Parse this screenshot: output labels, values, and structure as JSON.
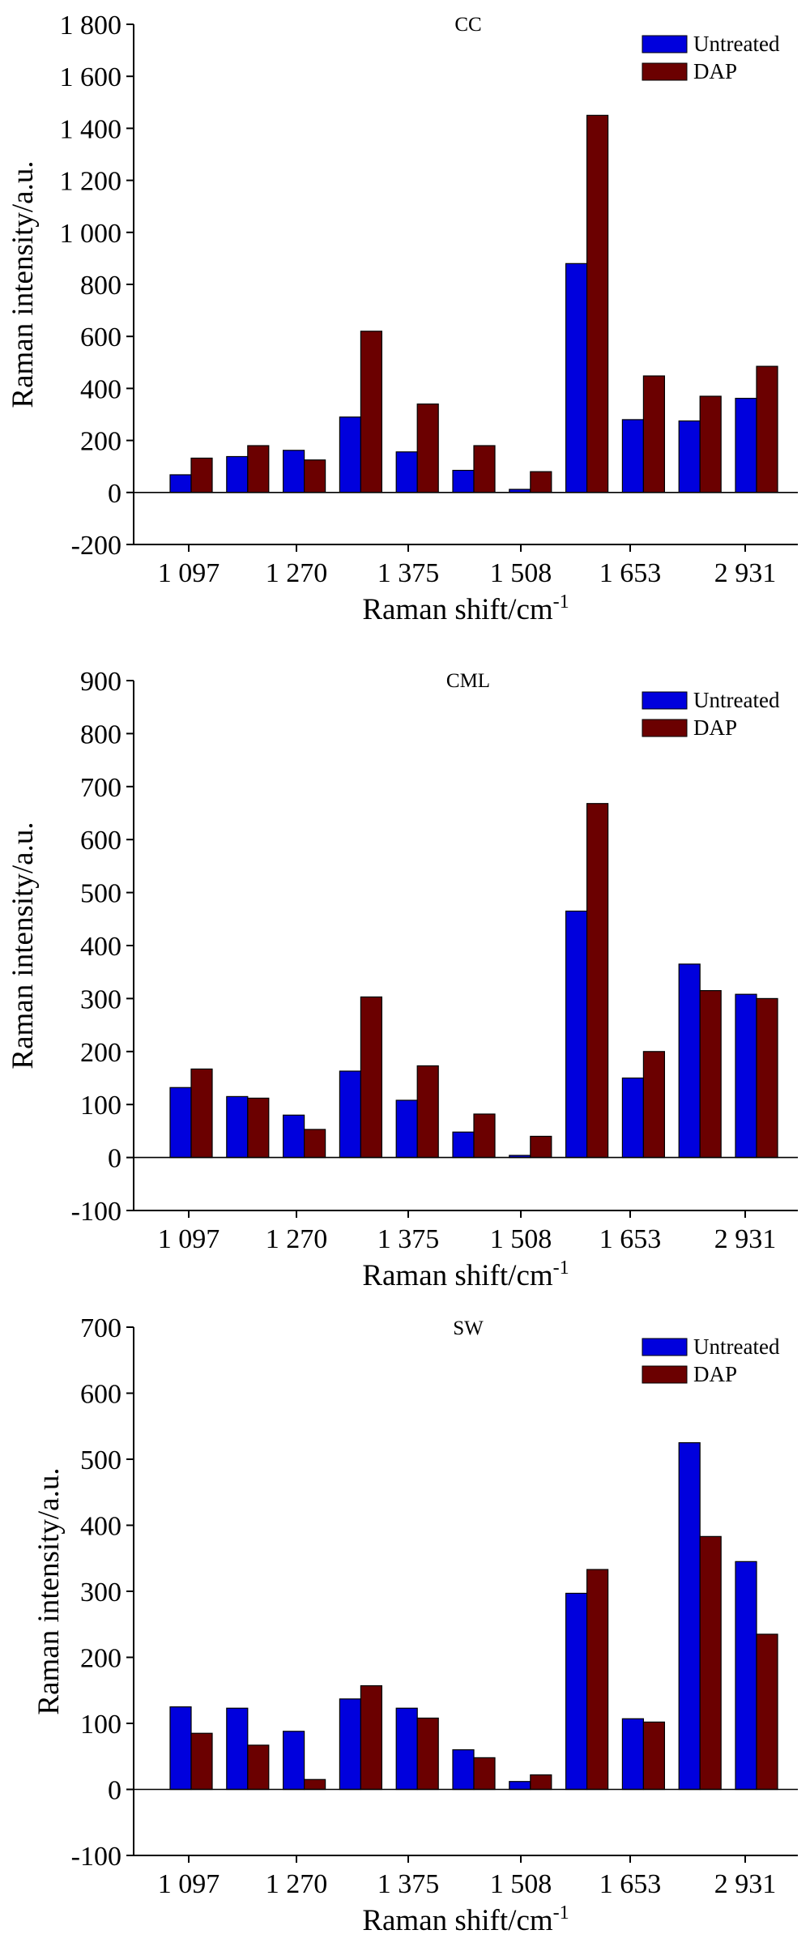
{
  "chart_data": [
    {
      "type": "bar",
      "title": "CC",
      "xlabel": "Raman shift/cm",
      "xlabel_sup": "-1",
      "ylabel": "Raman intensity/a.u.",
      "ylim": [
        -200,
        1800
      ],
      "yticks": [
        -200,
        0,
        200,
        400,
        600,
        800,
        1000,
        1200,
        1400,
        1600,
        1800
      ],
      "ytick_labels": [
        "-200",
        "0",
        "200",
        "400",
        "600",
        "800",
        "1 000",
        "1 200",
        "1 400",
        "1 600",
        "1 800"
      ],
      "category_count": 11,
      "shown_category_labels": [
        "1 097",
        "1 270",
        "1 375",
        "1 508",
        "1 653",
        "2 931"
      ],
      "legend": "top-right",
      "series": [
        {
          "name": "Untreated",
          "color": "#0000dd",
          "values": [
            68,
            138,
            162,
            290,
            156,
            85,
            12,
            880,
            280,
            275,
            362
          ]
        },
        {
          "name": "DAP",
          "color": "#6b0000",
          "values": [
            132,
            180,
            125,
            620,
            340,
            180,
            80,
            1450,
            448,
            370,
            485
          ]
        }
      ]
    },
    {
      "type": "bar",
      "title": "CML",
      "xlabel": "Raman shift/cm",
      "xlabel_sup": "-1",
      "ylabel": "Raman intensity/a.u.",
      "ylim": [
        -100,
        900
      ],
      "yticks": [
        -100,
        0,
        100,
        200,
        300,
        400,
        500,
        600,
        700,
        800,
        900
      ],
      "ytick_labels": [
        "-100",
        "0",
        "100",
        "200",
        "300",
        "400",
        "500",
        "600",
        "700",
        "800",
        "900"
      ],
      "category_count": 11,
      "shown_category_labels": [
        "1 097",
        "1 270",
        "1 375",
        "1 508",
        "1 653",
        "2 931"
      ],
      "legend": "top-right",
      "series": [
        {
          "name": "Untreated",
          "color": "#0000dd",
          "values": [
            132,
            115,
            80,
            163,
            108,
            48,
            4,
            465,
            150,
            365,
            308
          ]
        },
        {
          "name": "DAP",
          "color": "#6b0000",
          "values": [
            167,
            112,
            53,
            303,
            173,
            82,
            40,
            668,
            200,
            315,
            300
          ]
        }
      ]
    },
    {
      "type": "bar",
      "title": "SW",
      "xlabel": "Raman shift/cm",
      "xlabel_sup": "-1",
      "ylabel": "Raman intensity/a.u.",
      "ylim": [
        -100,
        700
      ],
      "yticks": [
        -100,
        0,
        100,
        200,
        300,
        400,
        500,
        600,
        700
      ],
      "ytick_labels": [
        "-100",
        "0",
        "100",
        "200",
        "300",
        "400",
        "500",
        "600",
        "700"
      ],
      "category_count": 11,
      "shown_category_labels": [
        "1 097",
        "1 270",
        "1 375",
        "1 508",
        "1 653",
        "2 931"
      ],
      "legend": "top-right",
      "series": [
        {
          "name": "Untreated",
          "color": "#0000dd",
          "values": [
            125,
            123,
            88,
            137,
            123,
            60,
            12,
            297,
            107,
            525,
            345
          ]
        },
        {
          "name": "DAP",
          "color": "#6b0000",
          "values": [
            85,
            67,
            15,
            157,
            108,
            48,
            22,
            333,
            102,
            383,
            235
          ]
        }
      ]
    }
  ]
}
